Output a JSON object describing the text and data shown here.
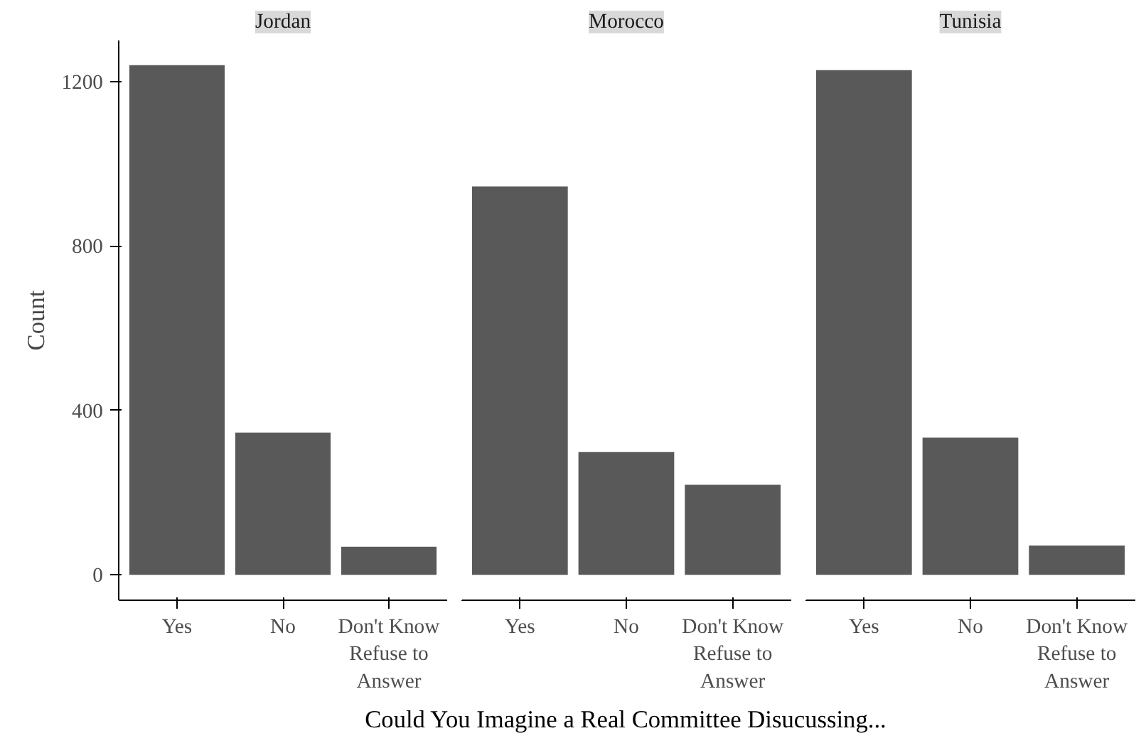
{
  "chart_data": [
    {
      "type": "bar",
      "title": "Jordan",
      "ylabel": "Count",
      "categories": [
        "Yes",
        "No",
        "Don't Know\nRefuse to\nAnswer"
      ],
      "values": [
        1240,
        346,
        68
      ],
      "color": "#595959",
      "ylim": [
        -62,
        1300
      ],
      "yticks": [
        0,
        400,
        800,
        1200
      ],
      "grid": false
    },
    {
      "type": "bar",
      "title": "Morocco",
      "xlabel": "Could You Imagine a Real Committee Disucussing...",
      "categories": [
        "Yes",
        "No",
        "Don't Know\nRefuse to\nAnswer"
      ],
      "values": [
        945,
        299,
        219
      ],
      "color": "#595959",
      "ylim": [
        -62,
        1300
      ],
      "yticks": [
        0,
        400,
        800,
        1200
      ],
      "grid": false,
      "tick_labels": "x"
    },
    {
      "type": "bar",
      "title": "Tunisia",
      "categories": [
        "Yes",
        "No",
        "Don't Know\nRefuse to\nAnswer"
      ],
      "values": [
        1228,
        334,
        71
      ],
      "color": "#595959",
      "ylim": [
        -62,
        1300
      ],
      "yticks": [
        0,
        400,
        800,
        1200
      ],
      "grid": false,
      "tick_labels": "x"
    }
  ]
}
